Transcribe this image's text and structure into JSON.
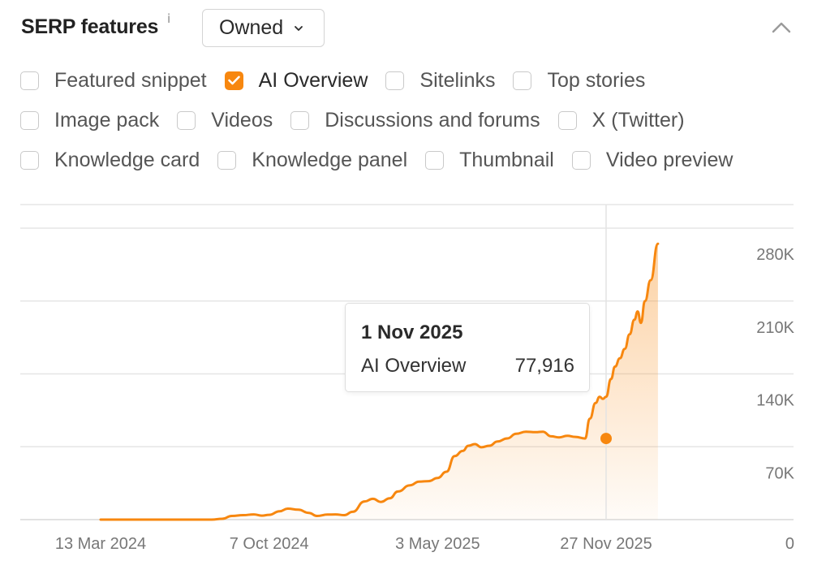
{
  "header": {
    "title": "SERP features",
    "info_icon": "i",
    "dropdown_value": "Owned",
    "collapse_icon": "chevron-up-icon"
  },
  "filters": {
    "rows": [
      [
        {
          "label": "Featured snippet",
          "checked": false
        },
        {
          "label": "AI Overview",
          "checked": true
        },
        {
          "label": "Sitelinks",
          "checked": false
        },
        {
          "label": "Top stories",
          "checked": false
        }
      ],
      [
        {
          "label": "Image pack",
          "checked": false
        },
        {
          "label": "Videos",
          "checked": false
        },
        {
          "label": "Discussions and forums",
          "checked": false
        },
        {
          "label": "X (Twitter)",
          "checked": false
        }
      ],
      [
        {
          "label": "Knowledge card",
          "checked": false
        },
        {
          "label": "Knowledge panel",
          "checked": false
        },
        {
          "label": "Thumbnail",
          "checked": false
        },
        {
          "label": "Video preview",
          "checked": false
        }
      ]
    ]
  },
  "colors": {
    "accent": "#f7870f",
    "grid": "#e6e6e6",
    "axis_text": "#777777"
  },
  "tooltip": {
    "date": "1 Nov 2025",
    "series": "AI Overview",
    "value": "77,916"
  },
  "chart_data": {
    "type": "area",
    "title": "",
    "xlabel": "",
    "ylabel": "",
    "ylim": [
      0,
      280000
    ],
    "y_ticks": [
      0,
      70000,
      140000,
      210000,
      280000
    ],
    "y_tick_labels": [
      "0",
      "70K",
      "140K",
      "210K",
      "280K"
    ],
    "x_tick_labels": [
      "13 Mar 2024",
      "7 Oct 2024",
      "3 May 2025",
      "27 Nov 2025"
    ],
    "x_tick_dates": [
      "2024-03-13",
      "2024-10-07",
      "2025-05-03",
      "2025-11-27"
    ],
    "x_range": [
      "2024-03-13",
      "2026-01-30"
    ],
    "grid": true,
    "y_axis_position": "right",
    "highlight": {
      "date": "2025-11-01",
      "value": 77916
    },
    "series": [
      {
        "name": "AI Overview",
        "color": "#f7870f",
        "points": [
          [
            "2024-03-13",
            0
          ],
          [
            "2024-04-15",
            0
          ],
          [
            "2024-05-20",
            0
          ],
          [
            "2024-06-25",
            0
          ],
          [
            "2024-07-28",
            0
          ],
          [
            "2024-08-10",
            800
          ],
          [
            "2024-08-22",
            3500
          ],
          [
            "2024-09-05",
            4300
          ],
          [
            "2024-09-18",
            5000
          ],
          [
            "2024-09-28",
            3800
          ],
          [
            "2024-10-07",
            4600
          ],
          [
            "2024-10-20",
            8000
          ],
          [
            "2024-10-30",
            10500
          ],
          [
            "2024-11-12",
            9500
          ],
          [
            "2024-11-25",
            6500
          ],
          [
            "2024-12-05",
            3500
          ],
          [
            "2024-12-18",
            4800
          ],
          [
            "2024-12-28",
            5000
          ],
          [
            "2025-01-08",
            4300
          ],
          [
            "2025-01-18",
            7500
          ],
          [
            "2025-02-02",
            17500
          ],
          [
            "2025-02-12",
            20000
          ],
          [
            "2025-02-22",
            17000
          ],
          [
            "2025-03-05",
            20500
          ],
          [
            "2025-03-15",
            27000
          ],
          [
            "2025-03-30",
            33000
          ],
          [
            "2025-04-10",
            36500
          ],
          [
            "2025-04-22",
            37000
          ],
          [
            "2025-05-03",
            40000
          ],
          [
            "2025-05-14",
            46000
          ],
          [
            "2025-05-24",
            61000
          ],
          [
            "2025-06-03",
            66000
          ],
          [
            "2025-06-10",
            71000
          ],
          [
            "2025-06-18",
            72500
          ],
          [
            "2025-06-26",
            69500
          ],
          [
            "2025-07-06",
            71000
          ],
          [
            "2025-07-16",
            75000
          ],
          [
            "2025-07-28",
            78000
          ],
          [
            "2025-08-08",
            82500
          ],
          [
            "2025-08-20",
            84500
          ],
          [
            "2025-09-01",
            84000
          ],
          [
            "2025-09-10",
            84500
          ],
          [
            "2025-09-20",
            80000
          ],
          [
            "2025-09-30",
            79000
          ],
          [
            "2025-10-10",
            80500
          ],
          [
            "2025-10-20",
            79500
          ],
          [
            "2025-11-01",
            77916
          ],
          [
            "2025-11-07",
            97000
          ],
          [
            "2025-11-14",
            112000
          ],
          [
            "2025-11-19",
            118000
          ],
          [
            "2025-11-23",
            116000
          ],
          [
            "2025-11-27",
            118000
          ],
          [
            "2025-12-03",
            135000
          ],
          [
            "2025-12-08",
            147000
          ],
          [
            "2025-12-14",
            155000
          ],
          [
            "2025-12-20",
            164000
          ],
          [
            "2025-12-26",
            178000
          ],
          [
            "2026-01-01",
            192000
          ],
          [
            "2026-01-05",
            200000
          ],
          [
            "2026-01-09",
            189000
          ],
          [
            "2026-01-14",
            210000
          ],
          [
            "2026-01-21",
            230000
          ],
          [
            "2026-01-30",
            265000
          ]
        ]
      }
    ]
  }
}
